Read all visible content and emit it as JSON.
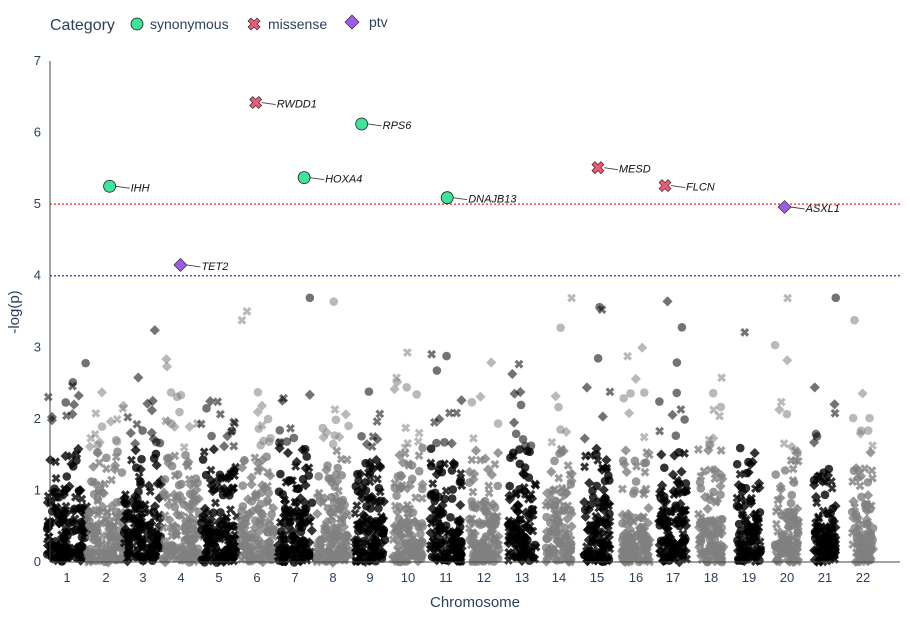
{
  "chart_data": {
    "type": "scatter",
    "subtype": "manhattan",
    "xlabel": "Chromosome",
    "ylabel": "-log(p)",
    "ylim": [
      0,
      7
    ],
    "yticks": [
      0,
      1,
      2,
      3,
      4,
      5,
      6,
      7
    ],
    "chromosomes": [
      "1",
      "2",
      "3",
      "4",
      "5",
      "6",
      "7",
      "8",
      "9",
      "10",
      "11",
      "12",
      "13",
      "14",
      "15",
      "16",
      "17",
      "18",
      "19",
      "20",
      "21",
      "22"
    ],
    "chromosome_colors": [
      "#000000",
      "#808080"
    ],
    "thresholds": [
      {
        "value": 5,
        "color": "#e8252e",
        "style": "dotted"
      },
      {
        "value": 4,
        "color": "#2b2bd0",
        "style": "dotted"
      }
    ],
    "legend": {
      "title": "Category",
      "placement": "top-left",
      "items": [
        {
          "name": "synonymous",
          "marker": "circle",
          "color": "#3ee49a"
        },
        {
          "name": "missense",
          "marker": "x",
          "color": "#ef5a74"
        },
        {
          "name": "ptv",
          "marker": "diamond",
          "color": "#9c5ce8"
        }
      ]
    },
    "highlighted": [
      {
        "gene": "IHH",
        "chromosome": 2,
        "pos": 0.62,
        "y": 5.25,
        "category": "synonymous"
      },
      {
        "gene": "TET2",
        "chromosome": 4,
        "pos": 0.48,
        "y": 4.15,
        "category": "ptv"
      },
      {
        "gene": "RWDD1",
        "chromosome": 6,
        "pos": 0.45,
        "y": 6.42,
        "category": "missense"
      },
      {
        "gene": "HOXA4",
        "chromosome": 7,
        "pos": 0.85,
        "y": 5.37,
        "category": "synonymous"
      },
      {
        "gene": "RPS6",
        "chromosome": 9,
        "pos": 0.12,
        "y": 6.12,
        "category": "synonymous"
      },
      {
        "gene": "DNAJB13",
        "chromosome": 11,
        "pos": 0.55,
        "y": 5.09,
        "category": "synonymous"
      },
      {
        "gene": "MESD",
        "chromosome": 15,
        "pos": 0.55,
        "y": 5.51,
        "category": "missense"
      },
      {
        "gene": "FLCN",
        "chromosome": 17,
        "pos": 0.1,
        "y": 5.26,
        "category": "missense"
      },
      {
        "gene": "ASXL1",
        "chromosome": 20,
        "pos": 0.35,
        "y": 4.96,
        "category": "ptv"
      }
    ],
    "background_points_note": "",
    "grid": false
  }
}
